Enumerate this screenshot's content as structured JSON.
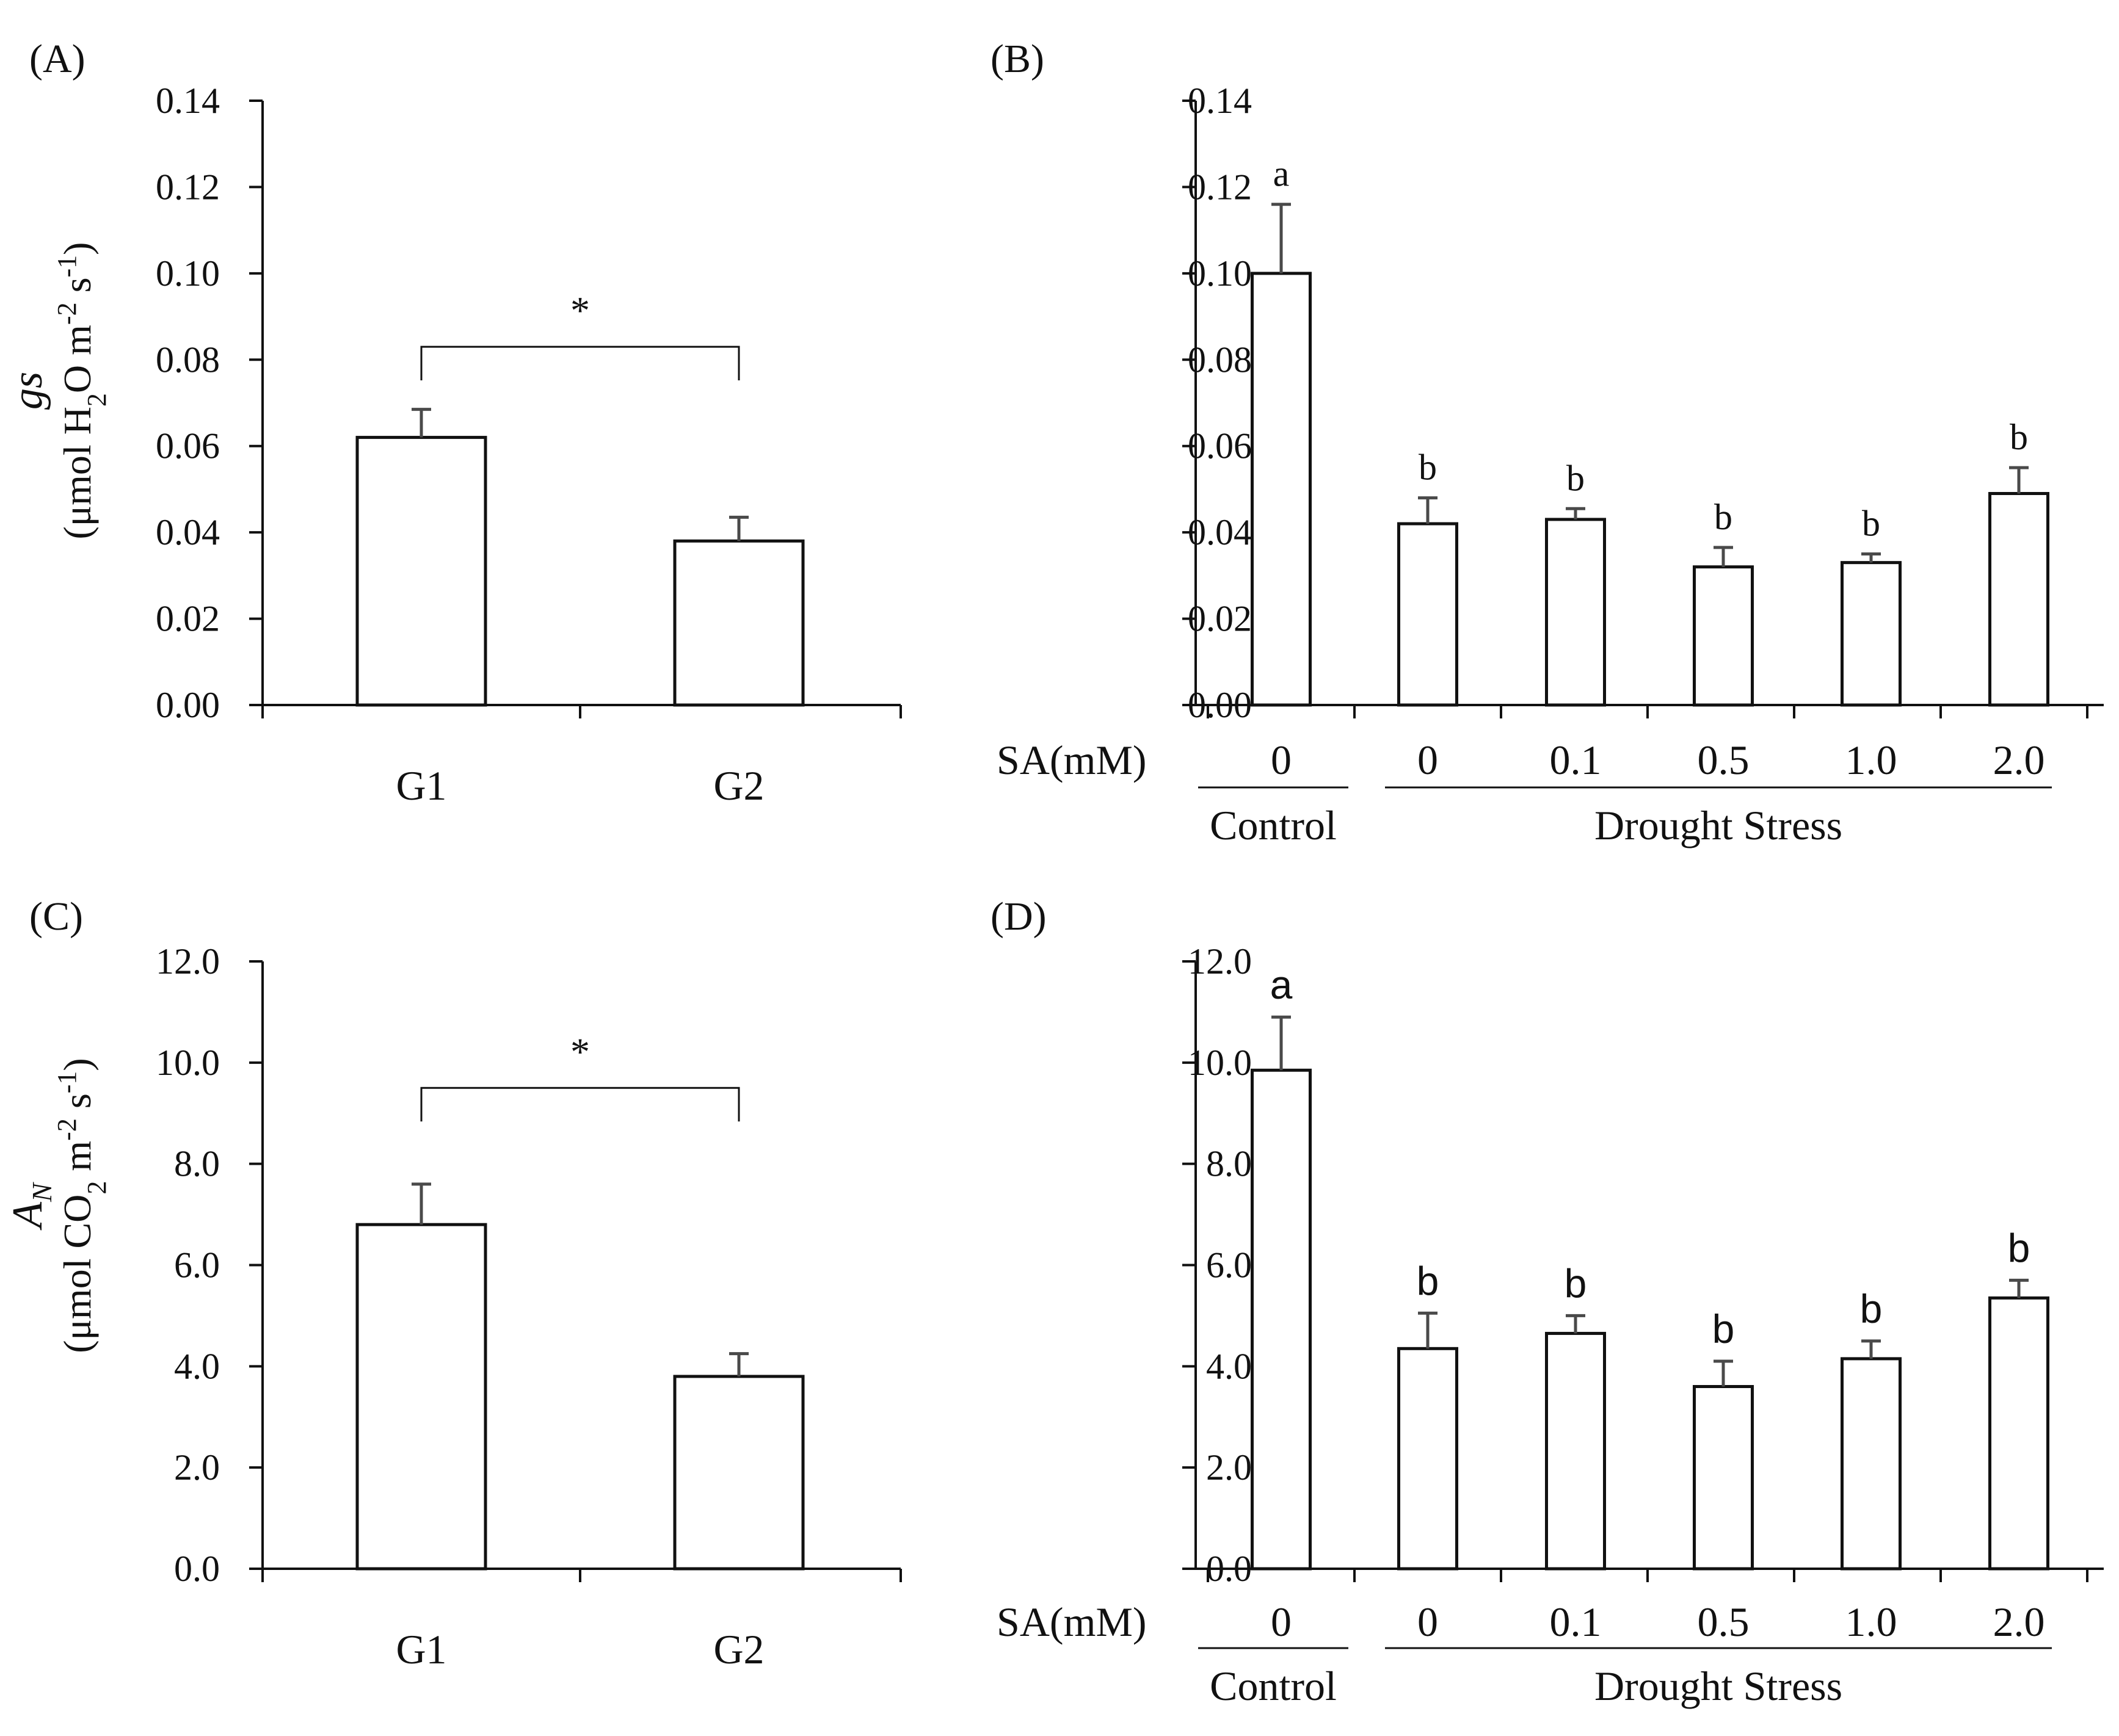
{
  "figure": {
    "background": "#ffffff",
    "ink": "#111111",
    "errorbar_color": "#4a4a4a"
  },
  "chart_data": [
    {
      "id": "A",
      "panel_label": "(A)",
      "type": "bar",
      "categories": [
        "G1",
        "G2"
      ],
      "values": [
        0.062,
        0.038
      ],
      "errors": [
        0.0065,
        0.0055
      ],
      "ylim": [
        0,
        0.14
      ],
      "yticks": [
        "0.00",
        "0.02",
        "0.04",
        "0.06",
        "0.08",
        "0.10",
        "0.12",
        "0.14"
      ],
      "ylabel": {
        "symbol": "gs",
        "line2_parts": [
          "(μmol H",
          "2",
          "O m",
          "-2",
          " s",
          "-1",
          ")"
        ]
      },
      "significance": {
        "from": 0,
        "to": 1,
        "label": "*",
        "y": 0.083
      },
      "letter_font": "serif"
    },
    {
      "id": "B",
      "panel_label": "(B)",
      "type": "bar",
      "categories": [
        "0",
        "0",
        "0.1",
        "0.5",
        "1.0",
        "2.0"
      ],
      "values": [
        0.1,
        0.042,
        0.043,
        0.032,
        0.033,
        0.049
      ],
      "errors": [
        0.016,
        0.006,
        0.0025,
        0.0045,
        0.002,
        0.006
      ],
      "letters": [
        "a",
        "b",
        "b",
        "b",
        "b",
        "b"
      ],
      "ylim": [
        0,
        0.14
      ],
      "yticks": [
        "0.00",
        "0.02",
        "0.04",
        "0.06",
        "0.08",
        "0.10",
        "0.12",
        "0.14"
      ],
      "xaxis_prefix": "SA(mM)",
      "groups": [
        {
          "label": "Control",
          "first": 0,
          "last": 0
        },
        {
          "label": "Drought Stress",
          "first": 1,
          "last": 5
        }
      ],
      "letter_font": "serif"
    },
    {
      "id": "C",
      "panel_label": "(C)",
      "type": "bar",
      "categories": [
        "G1",
        "G2"
      ],
      "values": [
        6.8,
        3.8
      ],
      "errors": [
        0.8,
        0.45
      ],
      "ylim": [
        0,
        12
      ],
      "yticks": [
        "0.0",
        "2.0",
        "4.0",
        "6.0",
        "8.0",
        "10.0",
        "12.0"
      ],
      "ylabel": {
        "symbol": "A",
        "symbol_sub": "N",
        "line2_parts": [
          "(μmol CO",
          "2",
          " m",
          "-2",
          " s",
          "-1",
          ")"
        ]
      },
      "significance": {
        "from": 0,
        "to": 1,
        "label": "*",
        "y": 9.5
      },
      "letter_font": "sans"
    },
    {
      "id": "D",
      "panel_label": "(D)",
      "type": "bar",
      "categories": [
        "0",
        "0",
        "0.1",
        "0.5",
        "1.0",
        "2.0"
      ],
      "values": [
        9.85,
        4.35,
        4.65,
        3.6,
        4.15,
        5.35
      ],
      "errors": [
        1.05,
        0.7,
        0.35,
        0.5,
        0.35,
        0.35
      ],
      "letters": [
        "a",
        "b",
        "b",
        "b",
        "b",
        "b"
      ],
      "ylim": [
        0,
        12
      ],
      "yticks": [
        "0.0",
        "2.0",
        "4.0",
        "6.0",
        "8.0",
        "10.0",
        "12.0"
      ],
      "xaxis_prefix": "SA(mM)",
      "groups": [
        {
          "label": "Control",
          "first": 0,
          "last": 0
        },
        {
          "label": "Drought Stress",
          "first": 1,
          "last": 5
        }
      ],
      "letter_font": "sans"
    }
  ]
}
